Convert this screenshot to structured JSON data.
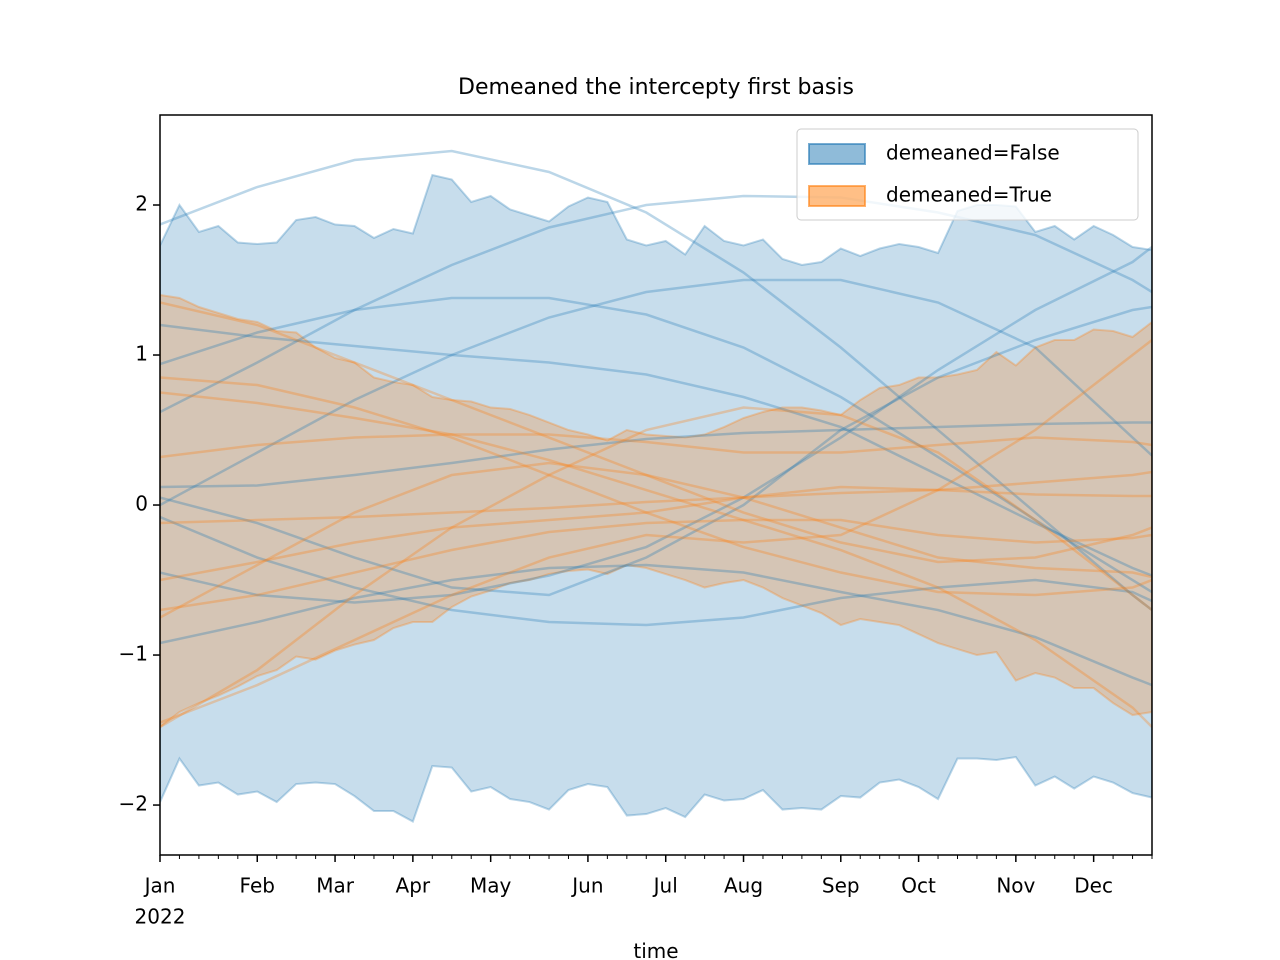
{
  "chart_data": {
    "type": "fill_between",
    "title": "Demeaned the intercepty first basis",
    "xlabel": "time",
    "year_label": "2022",
    "categories": [
      "Jan",
      null,
      null,
      null,
      null,
      "Feb",
      null,
      null,
      null,
      "Mar",
      null,
      null,
      null,
      "Apr",
      null,
      null,
      null,
      "May",
      null,
      null,
      null,
      null,
      "Jun",
      null,
      null,
      null,
      "Jul",
      null,
      null,
      null,
      "Aug",
      null,
      null,
      null,
      null,
      "Sep",
      null,
      null,
      null,
      "Oct",
      null,
      null,
      null,
      null,
      "Nov",
      null,
      null,
      null,
      "Dec",
      null,
      null,
      null
    ],
    "xlim": [
      0,
      51
    ],
    "ylim": [
      -2.333,
      2.6
    ],
    "yticks": [
      {
        "value": -2,
        "label": "−2"
      },
      {
        "value": -1,
        "label": "−1"
      },
      0,
      1,
      2
    ],
    "legend": "upper right",
    "line_x": [
      0,
      5,
      10,
      15,
      20,
      25,
      30,
      35,
      40,
      45,
      50,
      51
    ],
    "series": [
      {
        "name": "demeaned=False",
        "color": "#1f77b4",
        "upper": [
          1.73,
          2.0,
          1.82,
          1.86,
          1.75,
          1.74,
          1.75,
          1.9,
          1.92,
          1.87,
          1.86,
          1.78,
          1.84,
          1.81,
          2.2,
          2.17,
          2.02,
          2.06,
          1.97,
          1.93,
          1.89,
          1.99,
          2.05,
          2.02,
          1.77,
          1.73,
          1.76,
          1.67,
          1.86,
          1.76,
          1.73,
          1.77,
          1.64,
          1.6,
          1.62,
          1.71,
          1.66,
          1.71,
          1.74,
          1.72,
          1.68,
          1.96,
          2.0,
          2.0,
          1.99,
          1.82,
          1.86,
          1.77,
          1.86,
          1.8,
          1.72,
          1.7
        ],
        "lower": [
          -1.98,
          -1.69,
          -1.87,
          -1.85,
          -1.93,
          -1.91,
          -1.98,
          -1.86,
          -1.85,
          -1.86,
          -1.94,
          -2.04,
          -2.04,
          -2.11,
          -1.74,
          -1.75,
          -1.91,
          -1.88,
          -1.96,
          -1.98,
          -2.03,
          -1.9,
          -1.86,
          -1.88,
          -2.07,
          -2.06,
          -2.02,
          -2.08,
          -1.93,
          -1.97,
          -1.96,
          -1.9,
          -2.03,
          -2.02,
          -2.03,
          -1.94,
          -1.95,
          -1.85,
          -1.83,
          -1.88,
          -1.96,
          -1.69,
          -1.69,
          -1.7,
          -1.68,
          -1.87,
          -1.81,
          -1.89,
          -1.81,
          -1.85,
          -1.92,
          -1.95
        ],
        "lines": [
          [
            1.87,
            2.12,
            2.3,
            2.36,
            2.22,
            1.95,
            1.55,
            1.05,
            0.5,
            -0.05,
            -0.6,
            -0.7
          ],
          [
            0.62,
            0.95,
            1.3,
            1.6,
            1.85,
            2.0,
            2.06,
            2.05,
            1.95,
            1.8,
            1.5,
            1.42
          ],
          [
            0.94,
            1.15,
            1.3,
            1.38,
            1.38,
            1.27,
            1.05,
            0.72,
            0.32,
            -0.1,
            -0.5,
            -0.58
          ],
          [
            1.2,
            1.12,
            1.06,
            1.0,
            0.95,
            0.87,
            0.72,
            0.52,
            0.2,
            -0.12,
            -0.42,
            -0.47
          ],
          [
            0.0,
            0.35,
            0.7,
            1.0,
            1.25,
            1.42,
            1.5,
            1.5,
            1.35,
            1.05,
            0.45,
            0.33
          ],
          [
            0.12,
            0.13,
            0.2,
            0.28,
            0.37,
            0.44,
            0.48,
            0.5,
            0.52,
            0.54,
            0.55,
            0.55
          ],
          [
            -0.45,
            -0.6,
            -0.65,
            -0.6,
            -0.47,
            -0.28,
            0.05,
            0.45,
            0.9,
            1.3,
            1.62,
            1.72
          ],
          [
            -0.92,
            -0.78,
            -0.62,
            -0.5,
            -0.42,
            -0.4,
            -0.45,
            -0.58,
            -0.7,
            -0.88,
            -1.15,
            -1.2
          ],
          [
            -0.08,
            -0.35,
            -0.55,
            -0.7,
            -0.78,
            -0.8,
            -0.75,
            -0.62,
            -0.55,
            -0.5,
            -0.58,
            -0.64
          ],
          [
            0.05,
            -0.12,
            -0.35,
            -0.55,
            -0.6,
            -0.35,
            0.0,
            0.5,
            0.85,
            1.1,
            1.3,
            1.32
          ]
        ]
      },
      {
        "name": "demeaned=True",
        "color": "#ff7f0e",
        "upper": [
          1.4,
          1.38,
          1.32,
          1.28,
          1.24,
          1.22,
          1.16,
          1.15,
          1.05,
          0.98,
          0.95,
          0.85,
          0.82,
          0.8,
          0.72,
          0.7,
          0.69,
          0.65,
          0.64,
          0.6,
          0.55,
          0.5,
          0.47,
          0.43,
          0.5,
          0.47,
          0.46,
          0.45,
          0.47,
          0.52,
          0.58,
          0.62,
          0.65,
          0.65,
          0.63,
          0.6,
          0.7,
          0.78,
          0.8,
          0.85,
          0.85,
          0.87,
          0.9,
          1.02,
          0.93,
          1.05,
          1.1,
          1.1,
          1.17,
          1.16,
          1.12,
          1.22
        ],
        "lower": [
          -1.48,
          -1.38,
          -1.32,
          -1.27,
          -1.21,
          -1.14,
          -1.1,
          -1.01,
          -1.03,
          -0.97,
          -0.93,
          -0.9,
          -0.82,
          -0.78,
          -0.78,
          -0.68,
          -0.61,
          -0.57,
          -0.52,
          -0.5,
          -0.46,
          -0.44,
          -0.43,
          -0.46,
          -0.4,
          -0.42,
          -0.46,
          -0.5,
          -0.55,
          -0.52,
          -0.5,
          -0.55,
          -0.62,
          -0.67,
          -0.72,
          -0.8,
          -0.76,
          -0.78,
          -0.8,
          -0.86,
          -0.92,
          -0.96,
          -1.0,
          -0.98,
          -1.17,
          -1.12,
          -1.15,
          -1.22,
          -1.22,
          -1.32,
          -1.4,
          -1.38
        ],
        "lines": [
          [
            1.35,
            1.2,
            0.95,
            0.7,
            0.45,
            0.2,
            -0.05,
            -0.25,
            -0.38,
            -0.35,
            -0.2,
            -0.15
          ],
          [
            0.85,
            0.8,
            0.65,
            0.45,
            0.2,
            -0.05,
            -0.28,
            -0.45,
            -0.58,
            -0.6,
            -0.55,
            -0.5
          ],
          [
            0.75,
            0.68,
            0.58,
            0.47,
            0.3,
            0.1,
            -0.1,
            -0.3,
            -0.55,
            -0.9,
            -1.35,
            -1.48
          ],
          [
            0.32,
            0.4,
            0.45,
            0.47,
            0.47,
            0.42,
            0.35,
            0.35,
            0.4,
            0.45,
            0.42,
            0.4
          ],
          [
            -0.12,
            -0.1,
            -0.08,
            -0.05,
            -0.02,
            0.02,
            0.05,
            0.08,
            0.1,
            0.15,
            0.2,
            0.22
          ],
          [
            -0.5,
            -0.38,
            -0.25,
            -0.15,
            -0.1,
            -0.05,
            0.05,
            0.12,
            0.1,
            0.07,
            0.06,
            0.06
          ],
          [
            -0.7,
            -0.6,
            -0.45,
            -0.3,
            -0.18,
            -0.12,
            -0.1,
            -0.1,
            -0.2,
            -0.25,
            -0.22,
            -0.2
          ],
          [
            -1.48,
            -1.1,
            -0.6,
            -0.15,
            0.2,
            0.5,
            0.65,
            0.6,
            0.35,
            -0.1,
            -0.6,
            -0.7
          ],
          [
            -0.75,
            -0.4,
            -0.05,
            0.2,
            0.28,
            0.2,
            0.05,
            -0.15,
            -0.35,
            -0.42,
            -0.45,
            -0.48
          ],
          [
            -1.45,
            -1.2,
            -0.9,
            -0.6,
            -0.35,
            -0.2,
            -0.25,
            -0.2,
            0.1,
            0.5,
            1.0,
            1.1
          ]
        ]
      }
    ]
  }
}
